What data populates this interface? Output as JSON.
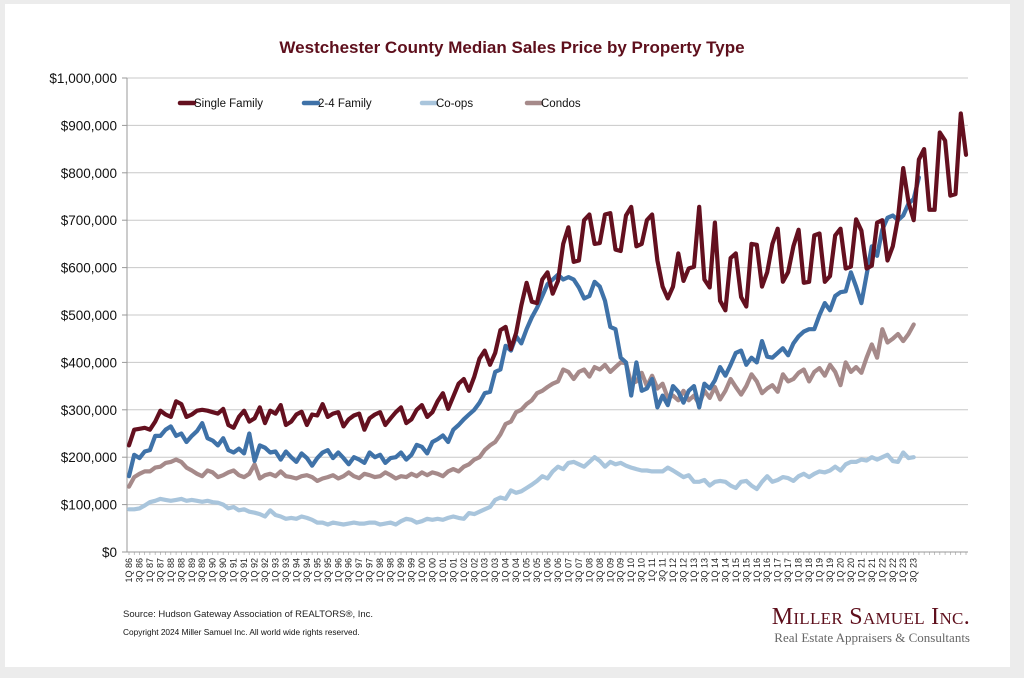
{
  "footer": {
    "source": "Source: Hudson Gateway Association of REALTORS®, Inc.",
    "copyright": "Copyright 2024 Miller Samuel Inc.  All world wide rights reserved."
  },
  "logo": {
    "name": "Miller Samuel Inc.",
    "tagline": "Real Estate Appraisers & Consultants"
  },
  "chart_data": {
    "type": "line",
    "title": "Westchester County Median Sales Price by Property Type",
    "xlabel": "",
    "ylabel": "",
    "ylim": [
      0,
      1000000
    ],
    "yticks": [
      0,
      100000,
      200000,
      300000,
      400000,
      500000,
      600000,
      700000,
      800000,
      900000,
      1000000
    ],
    "ytick_labels": [
      "$0",
      "$100,000",
      "$200,000",
      "$300,000",
      "$400,000",
      "$500,000",
      "$600,000",
      "$700,000",
      "$800,000",
      "$900,000",
      "$1,000,000"
    ],
    "grid": "horizontal",
    "legend": "top-left",
    "x_start": "1Q 86",
    "x_end": "3Q 23",
    "x_tick_labels": [
      "1Q 86",
      "3Q 86",
      "1Q 87",
      "3Q 87",
      "1Q 88",
      "3Q 88",
      "1Q 89",
      "3Q 89",
      "1Q 90",
      "3Q 90",
      "1Q 91",
      "3Q 91",
      "1Q 92",
      "3Q 92",
      "1Q 93",
      "3Q 93",
      "1Q 94",
      "3Q 94",
      "1Q 95",
      "3Q 95",
      "1Q 96",
      "3Q 96",
      "1Q 97",
      "3Q 97",
      "1Q 98",
      "3Q 98",
      "1Q 99",
      "3Q 99",
      "1Q 00",
      "3Q 00",
      "1Q 01",
      "3Q 01",
      "1Q 02",
      "3Q 02",
      "1Q 03",
      "3Q 03",
      "1Q 04",
      "3Q 04",
      "1Q 05",
      "3Q 05",
      "1Q 06",
      "3Q 06",
      "1Q 07",
      "3Q 07",
      "1Q 08",
      "3Q 08",
      "1Q 09",
      "3Q 09",
      "1Q 10",
      "3Q 10",
      "1Q 11",
      "3Q 11",
      "1Q 12",
      "3Q 12",
      "1Q 13",
      "3Q 13",
      "1Q 14",
      "3Q 14",
      "1Q 15",
      "3Q 15",
      "1Q 16",
      "3Q 16",
      "1Q 17",
      "3Q 17",
      "1Q 18",
      "3Q 18",
      "1Q 19",
      "3Q 19",
      "1Q 20",
      "3Q 20",
      "1Q 21",
      "3Q 21",
      "1Q 22",
      "3Q 22",
      "1Q 23",
      "3Q 23"
    ],
    "series": [
      {
        "name": "Single Family",
        "color": "#64101f",
        "values": [
          225000,
          258000,
          260000,
          262000,
          258000,
          275000,
          298000,
          290000,
          285000,
          318000,
          312000,
          285000,
          290000,
          298000,
          300000,
          298000,
          295000,
          292000,
          302000,
          268000,
          262000,
          285000,
          298000,
          275000,
          282000,
          305000,
          272000,
          298000,
          292000,
          310000,
          268000,
          275000,
          290000,
          296000,
          268000,
          290000,
          288000,
          312000,
          285000,
          292000,
          295000,
          265000,
          280000,
          288000,
          292000,
          258000,
          282000,
          290000,
          295000,
          268000,
          282000,
          295000,
          305000,
          272000,
          280000,
          300000,
          310000,
          285000,
          295000,
          318000,
          335000,
          302000,
          328000,
          355000,
          365000,
          340000,
          370000,
          408000,
          425000,
          395000,
          420000,
          468000,
          475000,
          428000,
          462000,
          520000,
          568000,
          528000,
          525000,
          575000,
          590000,
          545000,
          572000,
          650000,
          685000,
          612000,
          615000,
          700000,
          712000,
          650000,
          652000,
          712000,
          715000,
          638000,
          635000,
          710000,
          728000,
          645000,
          650000,
          700000,
          712000,
          615000,
          560000,
          535000,
          560000,
          630000,
          572000,
          598000,
          602000,
          728000,
          575000,
          558000,
          695000,
          530000,
          510000,
          620000,
          630000,
          538000,
          518000,
          650000,
          648000,
          560000,
          590000,
          650000,
          682000,
          570000,
          590000,
          645000,
          680000,
          568000,
          570000,
          668000,
          672000,
          570000,
          582000,
          668000,
          682000,
          598000,
          602000,
          702000,
          678000,
          598000,
          604000,
          695000,
          700000,
          615000,
          645000,
          705000,
          810000,
          738000,
          700000,
          828000,
          850000,
          722000,
          722000,
          885000,
          868000,
          752000,
          755000,
          925000,
          838000
        ]
      },
      {
        "name": "2-4 Family",
        "color": "#3f72a8",
        "values": [
          160000,
          205000,
          198000,
          212000,
          215000,
          245000,
          245000,
          258000,
          265000,
          245000,
          250000,
          232000,
          245000,
          255000,
          272000,
          240000,
          235000,
          225000,
          240000,
          215000,
          210000,
          218000,
          208000,
          250000,
          192000,
          225000,
          220000,
          210000,
          212000,
          195000,
          212000,
          200000,
          190000,
          208000,
          198000,
          182000,
          198000,
          210000,
          215000,
          198000,
          210000,
          198000,
          185000,
          200000,
          195000,
          188000,
          210000,
          200000,
          205000,
          188000,
          198000,
          200000,
          210000,
          195000,
          205000,
          226000,
          222000,
          208000,
          232000,
          238000,
          246000,
          232000,
          258000,
          268000,
          280000,
          290000,
          300000,
          315000,
          335000,
          338000,
          380000,
          385000,
          435000,
          425000,
          455000,
          440000,
          470000,
          495000,
          515000,
          540000,
          565000,
          575000,
          585000,
          575000,
          580000,
          575000,
          558000,
          535000,
          540000,
          570000,
          560000,
          530000,
          475000,
          470000,
          410000,
          400000,
          330000,
          400000,
          340000,
          345000,
          365000,
          305000,
          330000,
          310000,
          350000,
          338000,
          315000,
          340000,
          350000,
          305000,
          355000,
          345000,
          362000,
          390000,
          372000,
          395000,
          420000,
          425000,
          395000,
          410000,
          400000,
          445000,
          412000,
          410000,
          420000,
          430000,
          415000,
          440000,
          455000,
          465000,
          470000,
          470000,
          500000,
          525000,
          510000,
          540000,
          548000,
          550000,
          590000,
          560000,
          525000,
          585000,
          645000,
          625000,
          680000,
          705000,
          710000,
          700000,
          710000,
          735000,
          745000,
          790000
        ]
      },
      {
        "name": "Co-ops",
        "color": "#a9c5dc",
        "values": [
          90000,
          90000,
          92000,
          98000,
          105000,
          108000,
          112000,
          110000,
          108000,
          110000,
          112000,
          108000,
          110000,
          108000,
          106000,
          108000,
          105000,
          104000,
          100000,
          92000,
          95000,
          88000,
          90000,
          85000,
          83000,
          80000,
          75000,
          88000,
          78000,
          75000,
          70000,
          72000,
          70000,
          75000,
          72000,
          68000,
          62000,
          62000,
          58000,
          62000,
          60000,
          58000,
          60000,
          62000,
          60000,
          60000,
          62000,
          62000,
          58000,
          60000,
          62000,
          58000,
          65000,
          70000,
          68000,
          62000,
          65000,
          70000,
          68000,
          70000,
          68000,
          72000,
          75000,
          72000,
          70000,
          82000,
          80000,
          85000,
          90000,
          95000,
          110000,
          115000,
          112000,
          130000,
          125000,
          128000,
          135000,
          142000,
          150000,
          160000,
          155000,
          170000,
          180000,
          175000,
          188000,
          190000,
          185000,
          180000,
          190000,
          200000,
          192000,
          180000,
          190000,
          185000,
          188000,
          182000,
          178000,
          175000,
          172000,
          172000,
          170000,
          170000,
          170000,
          178000,
          172000,
          165000,
          158000,
          162000,
          148000,
          148000,
          152000,
          140000,
          148000,
          150000,
          148000,
          140000,
          135000,
          148000,
          150000,
          140000,
          133000,
          148000,
          160000,
          148000,
          152000,
          158000,
          156000,
          150000,
          160000,
          165000,
          158000,
          165000,
          170000,
          168000,
          172000,
          180000,
          172000,
          185000,
          190000,
          190000,
          195000,
          193000,
          200000,
          195000,
          200000,
          205000,
          192000,
          190000,
          210000,
          198000,
          200000
        ]
      },
      {
        "name": "Condos",
        "color": "#a68a8a",
        "values": [
          138000,
          158000,
          165000,
          170000,
          170000,
          178000,
          180000,
          188000,
          190000,
          195000,
          190000,
          178000,
          172000,
          165000,
          160000,
          172000,
          168000,
          158000,
          162000,
          168000,
          172000,
          162000,
          158000,
          165000,
          185000,
          155000,
          162000,
          165000,
          160000,
          170000,
          160000,
          158000,
          155000,
          160000,
          162000,
          158000,
          150000,
          155000,
          158000,
          162000,
          155000,
          160000,
          168000,
          160000,
          156000,
          165000,
          162000,
          158000,
          160000,
          168000,
          162000,
          155000,
          160000,
          158000,
          165000,
          160000,
          168000,
          162000,
          168000,
          165000,
          160000,
          170000,
          175000,
          170000,
          180000,
          185000,
          195000,
          200000,
          215000,
          225000,
          232000,
          248000,
          270000,
          275000,
          295000,
          300000,
          312000,
          320000,
          335000,
          340000,
          348000,
          355000,
          360000,
          385000,
          380000,
          365000,
          380000,
          385000,
          370000,
          390000,
          385000,
          395000,
          380000,
          390000,
          400000,
          398000,
          355000,
          360000,
          378000,
          350000,
          372000,
          345000,
          355000,
          325000,
          330000,
          320000,
          340000,
          320000,
          330000,
          312000,
          340000,
          325000,
          348000,
          322000,
          340000,
          365000,
          348000,
          332000,
          350000,
          375000,
          360000,
          335000,
          345000,
          352000,
          338000,
          375000,
          360000,
          365000,
          378000,
          385000,
          360000,
          380000,
          388000,
          372000,
          395000,
          380000,
          352000,
          400000,
          380000,
          390000,
          378000,
          410000,
          438000,
          410000,
          470000,
          442000,
          450000,
          460000,
          445000,
          460000,
          480000
        ]
      }
    ]
  }
}
